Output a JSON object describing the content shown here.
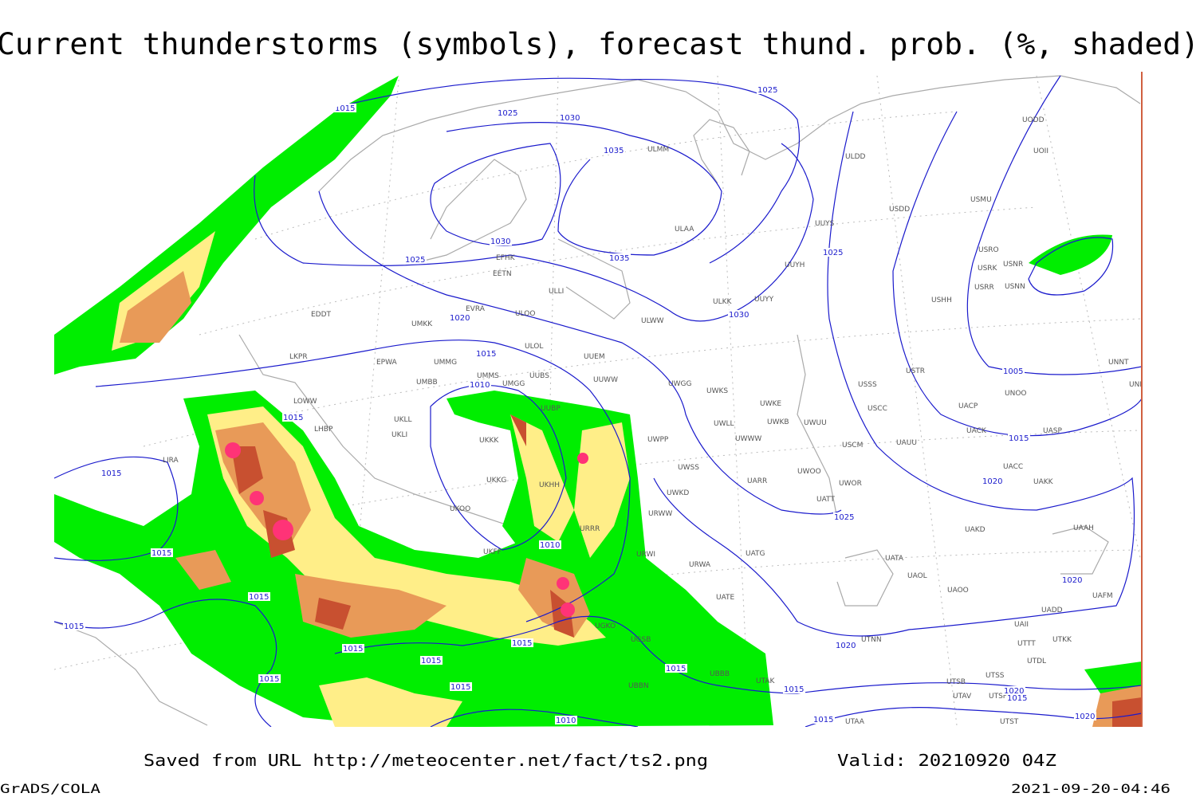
{
  "header": {
    "title": "Current thunderstorms (symbols), forecast thund. prob. (%, shaded)"
  },
  "footer": {
    "saved": "Saved from URL http://meteocenter.net/fact/ts2.png",
    "valid": "Valid: 20210920 04Z",
    "software": "GrADS/COLA",
    "timestamp": "2021-09-20-04:46"
  },
  "map": {
    "stations": [
      "ULMM",
      "ULDD",
      "ULAA",
      "UUYS",
      "USDD",
      "USMU",
      "UODD",
      "UOII",
      "USRO",
      "USNR",
      "USRK",
      "USRR",
      "USNN",
      "USHH",
      "EFHK",
      "EETN",
      "ULLI",
      "UUYH",
      "ULKK",
      "UUYY",
      "EVRA",
      "ULOO",
      "ULWW",
      "EDDT",
      "UMKK",
      "ULOL",
      "UUEM",
      "EPWA",
      "UMMG",
      "LKPR",
      "UMMS",
      "UUBS",
      "UUWW",
      "UMBB",
      "UMGG",
      "UWGG",
      "UWKS",
      "USSS",
      "USTR",
      "LOWW",
      "UUBP",
      "UWKE",
      "UWKB",
      "UWUU",
      "USCC",
      "UACP",
      "UACK",
      "UASP",
      "UNOO",
      "UNNT",
      "UNBB",
      "LHBP",
      "UKLL",
      "UKKK",
      "UWLL",
      "UWWW",
      "USCM",
      "UAUU",
      "UKLI",
      "LIRA",
      "UWPP",
      "UWSS",
      "UARR",
      "UWOO",
      "UWOR",
      "UACC",
      "UAKK",
      "UKKG",
      "UKHH",
      "UKOO",
      "UWKD",
      "URWW",
      "UATT",
      "UKFF",
      "URRR",
      "UAKD",
      "UAAH",
      "URWI",
      "UATG",
      "URWA",
      "UATA",
      "UAOL",
      "UAOO",
      "UAFM",
      "UATE",
      "UAII",
      "UADD",
      "UTNN",
      "UTTT",
      "UTKK",
      "UTDL",
      "UTAK",
      "UTSB",
      "UTSS",
      "UTAV",
      "UTSH",
      "UTAA",
      "UBBB",
      "UBBN",
      "UGSB",
      "UGKO",
      "UTST"
    ],
    "isobar_labels": [
      1015,
      1025,
      1030,
      1025,
      1035,
      1030,
      1035,
      1025,
      1025,
      1020,
      1030,
      1015,
      1010,
      1015,
      1005,
      1015,
      1020,
      1025,
      1015,
      1015,
      1010,
      1015,
      1015,
      1020,
      1020,
      1015,
      1015,
      1015,
      1015,
      1015,
      1015,
      1015,
      1020,
      1015,
      1015,
      1010,
      1020
    ]
  }
}
